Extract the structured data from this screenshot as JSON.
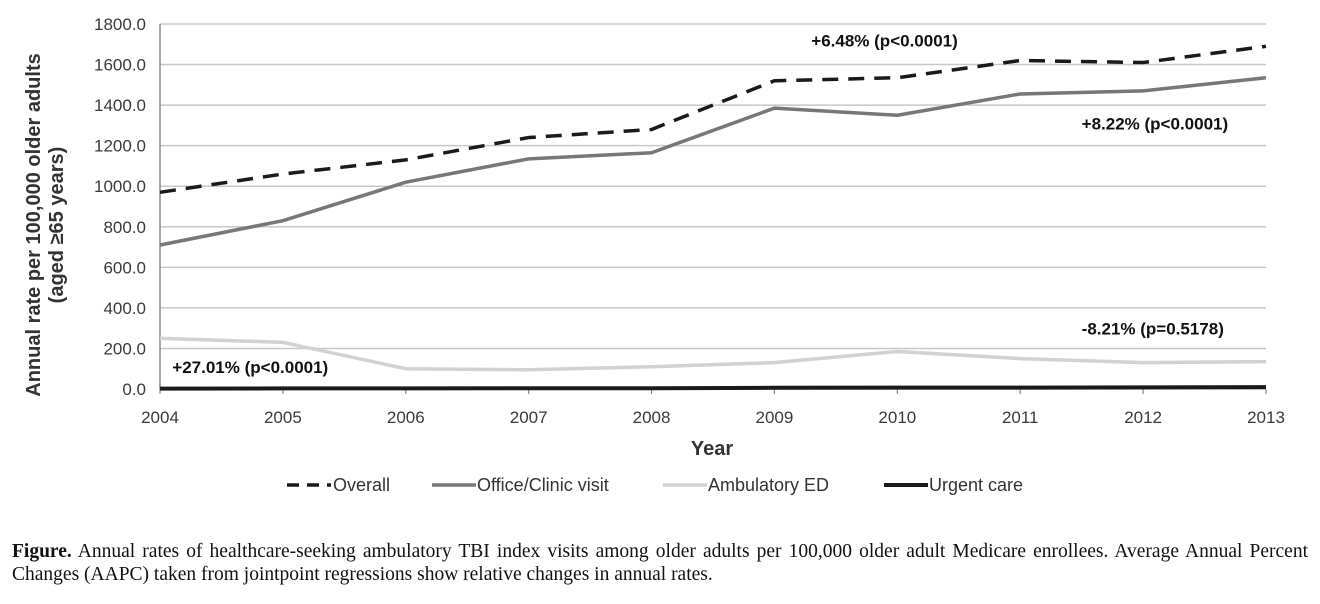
{
  "chart_data": {
    "type": "line",
    "xlabel": "Year",
    "ylabel_line1": "Annual rate per 100,000 older adults",
    "ylabel_line2": "(aged ≥65 years)",
    "x": [
      2004,
      2005,
      2006,
      2007,
      2008,
      2009,
      2010,
      2011,
      2012,
      2013
    ],
    "x_tick_labels": [
      "2004",
      "2005",
      "2006",
      "2007",
      "2008",
      "2009",
      "2010",
      "2011",
      "2012",
      "2013"
    ],
    "ylim": [
      0,
      1800
    ],
    "y_ticks": [
      0,
      200,
      400,
      600,
      800,
      1000,
      1200,
      1400,
      1600,
      1800
    ],
    "y_tick_labels": [
      "0.0",
      "200.0",
      "400.0",
      "600.0",
      "800.0",
      "1000.0",
      "1200.0",
      "1400.0",
      "1600.0",
      "1800.0"
    ],
    "grid": true,
    "legend_position": "bottom",
    "series": [
      {
        "name": "Overall",
        "color": "#1a1a1a",
        "style": "dashed",
        "values": [
          970,
          1060,
          1130,
          1240,
          1280,
          1520,
          1535,
          1620,
          1610,
          1690
        ]
      },
      {
        "name": "Office/Clinic visit",
        "color": "#777777",
        "style": "solid",
        "values": [
          710,
          830,
          1020,
          1135,
          1165,
          1385,
          1350,
          1455,
          1470,
          1535
        ]
      },
      {
        "name": "Ambulatory ED",
        "color": "#d2d2d2",
        "style": "solid",
        "values": [
          250,
          230,
          100,
          95,
          110,
          130,
          185,
          150,
          130,
          135
        ]
      },
      {
        "name": "Urgent care",
        "color": "#1a1a1a",
        "style": "solid",
        "values": [
          2,
          3,
          3,
          4,
          4,
          6,
          7,
          7,
          8,
          9
        ]
      }
    ],
    "annotations": [
      {
        "text": "+6.48% (p<0.0001)",
        "x": 2009.3,
        "y": 1690
      },
      {
        "text": "+8.22% (p<0.0001)",
        "x": 2011.5,
        "y": 1280
      },
      {
        "text": "-8.21% (p=0.5178)",
        "x": 2011.5,
        "y": 270
      },
      {
        "text": "+27.01% (p<0.0001)",
        "x": 2004.1,
        "y": 80
      }
    ]
  },
  "caption": {
    "label": "Figure.",
    "text": " Annual rates of healthcare-seeking ambulatory TBI index visits among older adults per 100,000 older adult Medicare enrollees. Average Annual Percent Changes (AAPC) taken from jointpoint regressions show relative changes in annual rates."
  }
}
